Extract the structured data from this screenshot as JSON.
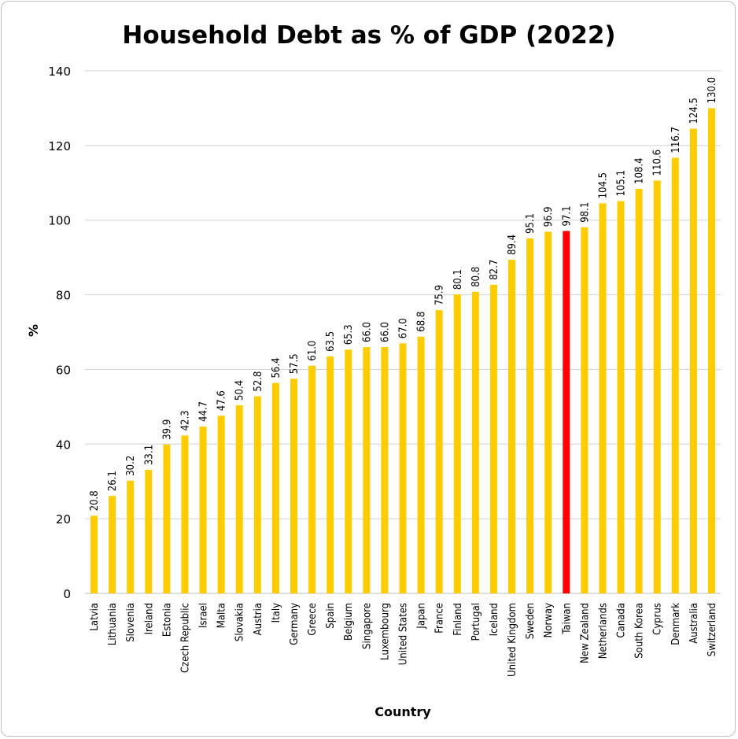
{
  "chart_data": {
    "type": "bar",
    "title": "Household Debt as % of GDP (2022)",
    "xlabel": "Country",
    "ylabel": "%",
    "ylim": [
      0,
      140
    ],
    "yticks": [
      0,
      20,
      40,
      60,
      80,
      100,
      120,
      140
    ],
    "grid": true,
    "colors": {
      "default": "#FFCC00",
      "highlight": "#FF0000"
    },
    "highlight": "Taiwan",
    "categories": [
      "Latvia",
      "Lithuania",
      "Slovenia",
      "Ireland",
      "Estonia",
      "Czech Republic",
      "Israel",
      "Malta",
      "Slovakia",
      "Austria",
      "Italy",
      "Germany",
      "Greece",
      "Spain",
      "Belgium",
      "Singapore",
      "Luxembourg",
      "United States",
      "Japan",
      "France",
      "Finland",
      "Portugal",
      "Iceland",
      "United Kingdom",
      "Sweden",
      "Norway",
      "Taiwan",
      "New Zealand",
      "Netherlands",
      "Canada",
      "South Korea",
      "Cyprus",
      "Denmark",
      "Australia",
      "Switzerland"
    ],
    "values": [
      20.8,
      26.1,
      30.2,
      33.1,
      39.9,
      42.3,
      44.7,
      47.6,
      50.4,
      52.8,
      56.4,
      57.5,
      61.0,
      63.5,
      65.3,
      66.0,
      66.0,
      67.0,
      68.8,
      75.9,
      80.1,
      80.8,
      82.7,
      89.4,
      95.1,
      96.9,
      97.1,
      98.1,
      104.5,
      105.1,
      108.4,
      110.6,
      116.7,
      124.5,
      130.0
    ],
    "labels": [
      "20.8",
      "26.1",
      "30.2",
      "33.1",
      "39.9",
      "42.3",
      "44.7",
      "47.6",
      "50.4",
      "52.8",
      "56.4",
      "57.5",
      "61.0",
      "63.5",
      "65.3",
      "66.0",
      "66.0",
      "67.0",
      "68.8",
      "75.9",
      "80.1",
      "80.8",
      "82.7",
      "89.4",
      "95.1",
      "96.9",
      "97.1",
      "98.1",
      "104.5",
      "105.1",
      "108.4",
      "110.6",
      "116.7",
      "124.5",
      "130.0"
    ]
  }
}
